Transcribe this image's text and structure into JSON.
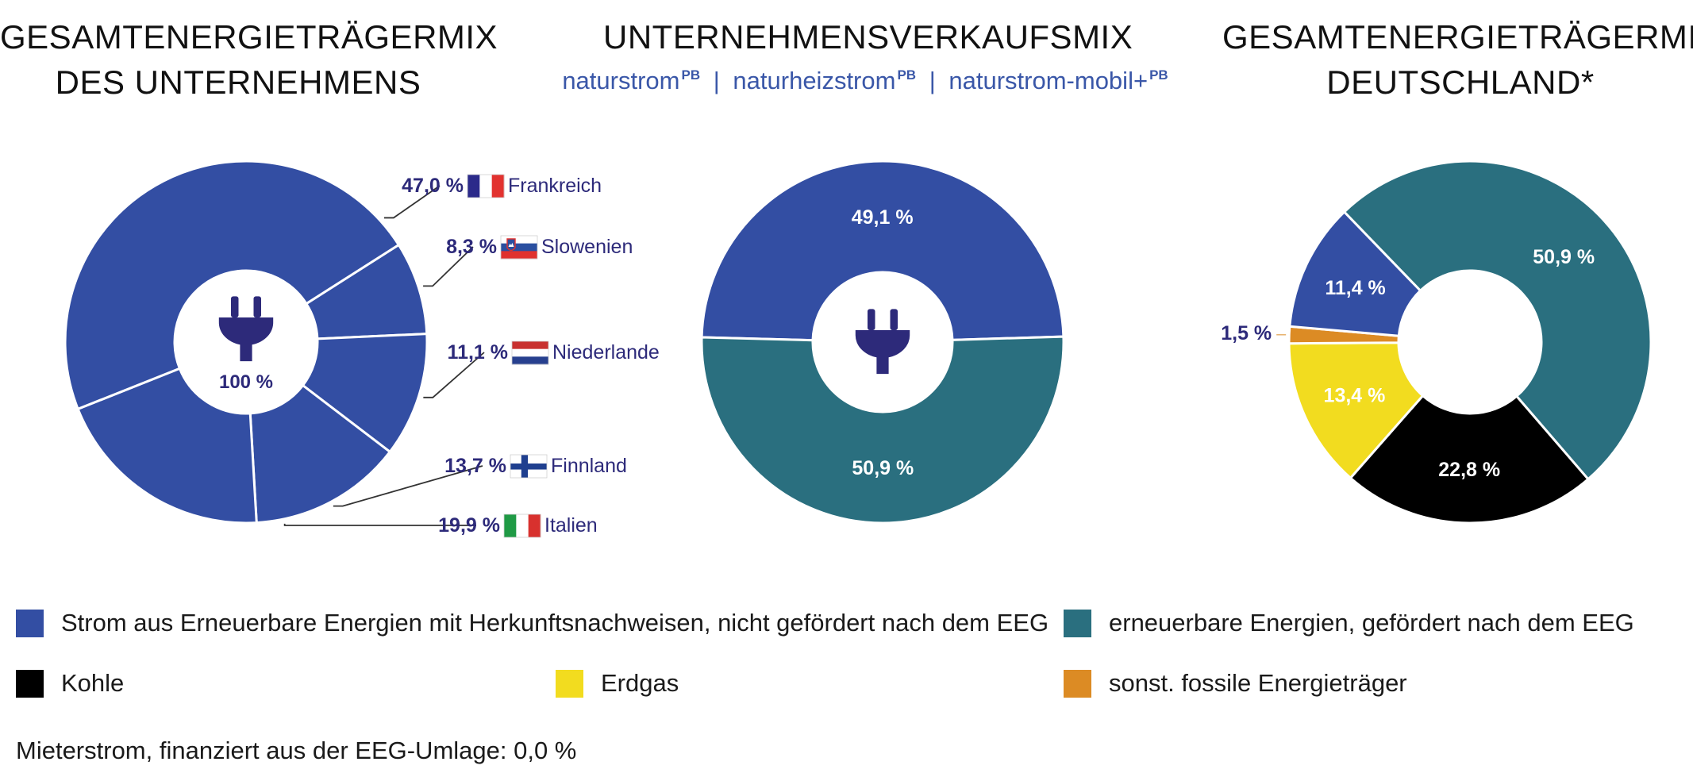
{
  "titles": {
    "left_line1": "GESAMTENERGIETRÄGERMIX",
    "left_line2": "DES UNTERNEHMENS",
    "mid": "UNTERNEHMENSVERKAUFSMIX",
    "right_line1": "GESAMTENERGIETRÄGERMIX",
    "right_line2": "DEUTSCHLAND*"
  },
  "products": [
    {
      "name": "naturstrom",
      "sup": "PB"
    },
    {
      "name": "naturheizstrom",
      "sup": "PB"
    },
    {
      "name": "naturstrom-mobil+",
      "sup": "PB"
    }
  ],
  "product_separator": "|",
  "colors": {
    "blue": "#334ea3",
    "teal": "#2a6f7f",
    "black": "#000000",
    "yellow": "#f2dc1f",
    "orange": "#dc8b24",
    "label_purple": "#2d2a7a",
    "white": "#ffffff"
  },
  "icon": "power-plug-icon",
  "chart_data": [
    {
      "type": "pie",
      "title": "GESAMTENERGIETRÄGERMIX DES UNTERNEHMENS",
      "center_label": "100 %",
      "slices": [
        {
          "label": "Frankreich",
          "value": 47.0,
          "display": "47,0 %",
          "color": "#334ea3",
          "flag": "france"
        },
        {
          "label": "Slowenien",
          "value": 8.3,
          "display": "8,3 %",
          "color": "#334ea3",
          "flag": "slovenia"
        },
        {
          "label": "Niederlande",
          "value": 11.1,
          "display": "11,1 %",
          "color": "#334ea3",
          "flag": "netherlands"
        },
        {
          "label": "Finnland",
          "value": 13.7,
          "display": "13,7 %",
          "color": "#334ea3",
          "flag": "finland"
        },
        {
          "label": "Italien",
          "value": 19.9,
          "display": "19,9 %",
          "color": "#334ea3",
          "flag": "italy"
        }
      ]
    },
    {
      "type": "pie",
      "title": "UNTERNEHMENSVERKAUFSMIX",
      "slices": [
        {
          "label": "Strom aus Erneuerbare Energien mit Herkunftsnachweisen, nicht gefördert nach dem EEG",
          "value": 49.1,
          "display": "49,1 %",
          "color": "#334ea3"
        },
        {
          "label": "erneuerbare Energien, gefördert nach dem EEG",
          "value": 50.9,
          "display": "50,9 %",
          "color": "#2a6f7f"
        }
      ]
    },
    {
      "type": "pie",
      "title": "GESAMTENERGIETRÄGERMIX DEUTSCHLAND*",
      "slices": [
        {
          "label": "erneuerbare Energien, gefördert nach dem EEG",
          "value": 50.9,
          "display": "50,9 %",
          "color": "#2a6f7f"
        },
        {
          "label": "Kohle",
          "value": 22.8,
          "display": "22,8 %",
          "color": "#000000"
        },
        {
          "label": "Erdgas",
          "value": 13.4,
          "display": "13,4 %",
          "color": "#f2dc1f"
        },
        {
          "label": "sonst. fossile Energieträger",
          "value": 1.5,
          "display": "1,5 %",
          "color": "#dc8b24"
        },
        {
          "label": "Strom aus Erneuerbare Energien mit Herkunftsnachweisen, nicht gefördert nach dem EEG",
          "value": 11.4,
          "display": "11,4 %",
          "color": "#334ea3"
        }
      ]
    }
  ],
  "legend": [
    {
      "label": "Strom aus Erneuerbare Energien mit Herkunftsnachweisen, nicht gefördert nach dem EEG",
      "color": "#334ea3"
    },
    {
      "label": "erneuerbare Energien, gefördert nach dem EEG",
      "color": "#2a6f7f"
    },
    {
      "label": "Kohle",
      "color": "#000000"
    },
    {
      "label": "Erdgas",
      "color": "#f2dc1f"
    },
    {
      "label": "sonst. fossile Energieträger",
      "color": "#dc8b24"
    }
  ],
  "footnote": "Mieterstrom, finanziert aus der EEG-Umlage: 0,0 %"
}
